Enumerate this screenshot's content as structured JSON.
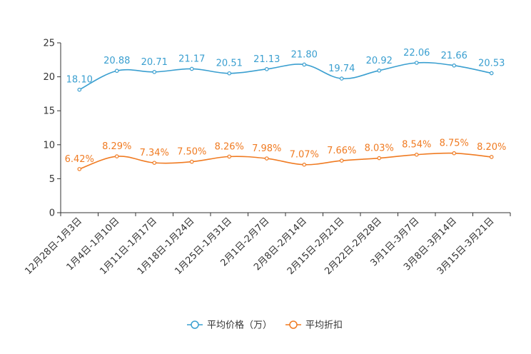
{
  "chart_data": {
    "type": "line",
    "categories": [
      "12月28日-1月3日",
      "1月4日-1月10日",
      "1月11日-1月17日",
      "1月18日-1月24日",
      "1月25日-1月31日",
      "2月1日-2月7日",
      "2月8日-2月14日",
      "2月15日-2月21日",
      "2月22日-2月28日",
      "3月1日-3月7日",
      "3月8日-3月14日",
      "3月15日-3月21日"
    ],
    "series": [
      {
        "name": "平均价格（万）",
        "color": "#3a9fd0",
        "values": [
          18.1,
          20.88,
          20.71,
          21.17,
          20.51,
          21.13,
          21.8,
          19.74,
          20.92,
          22.06,
          21.66,
          20.53
        ],
        "labels": [
          "18.10",
          "20.88",
          "20.71",
          "21.17",
          "20.51",
          "21.13",
          "21.80",
          "19.74",
          "20.92",
          "22.06",
          "21.66",
          "20.53"
        ]
      },
      {
        "name": "平均折扣",
        "color": "#f07b22",
        "values": [
          6.42,
          8.29,
          7.34,
          7.5,
          8.26,
          7.98,
          7.07,
          7.66,
          8.03,
          8.54,
          8.75,
          8.2
        ],
        "labels": [
          "6.42%",
          "8.29%",
          "7.34%",
          "7.50%",
          "8.26%",
          "7.98%",
          "7.07%",
          "7.66%",
          "8.03%",
          "8.54%",
          "8.75%",
          "8.20%"
        ]
      }
    ],
    "ylim": [
      0,
      25
    ],
    "yticks": [
      "0",
      "5",
      "10",
      "15",
      "20",
      "25"
    ],
    "legend_position": "bottom-center",
    "grid": false
  }
}
